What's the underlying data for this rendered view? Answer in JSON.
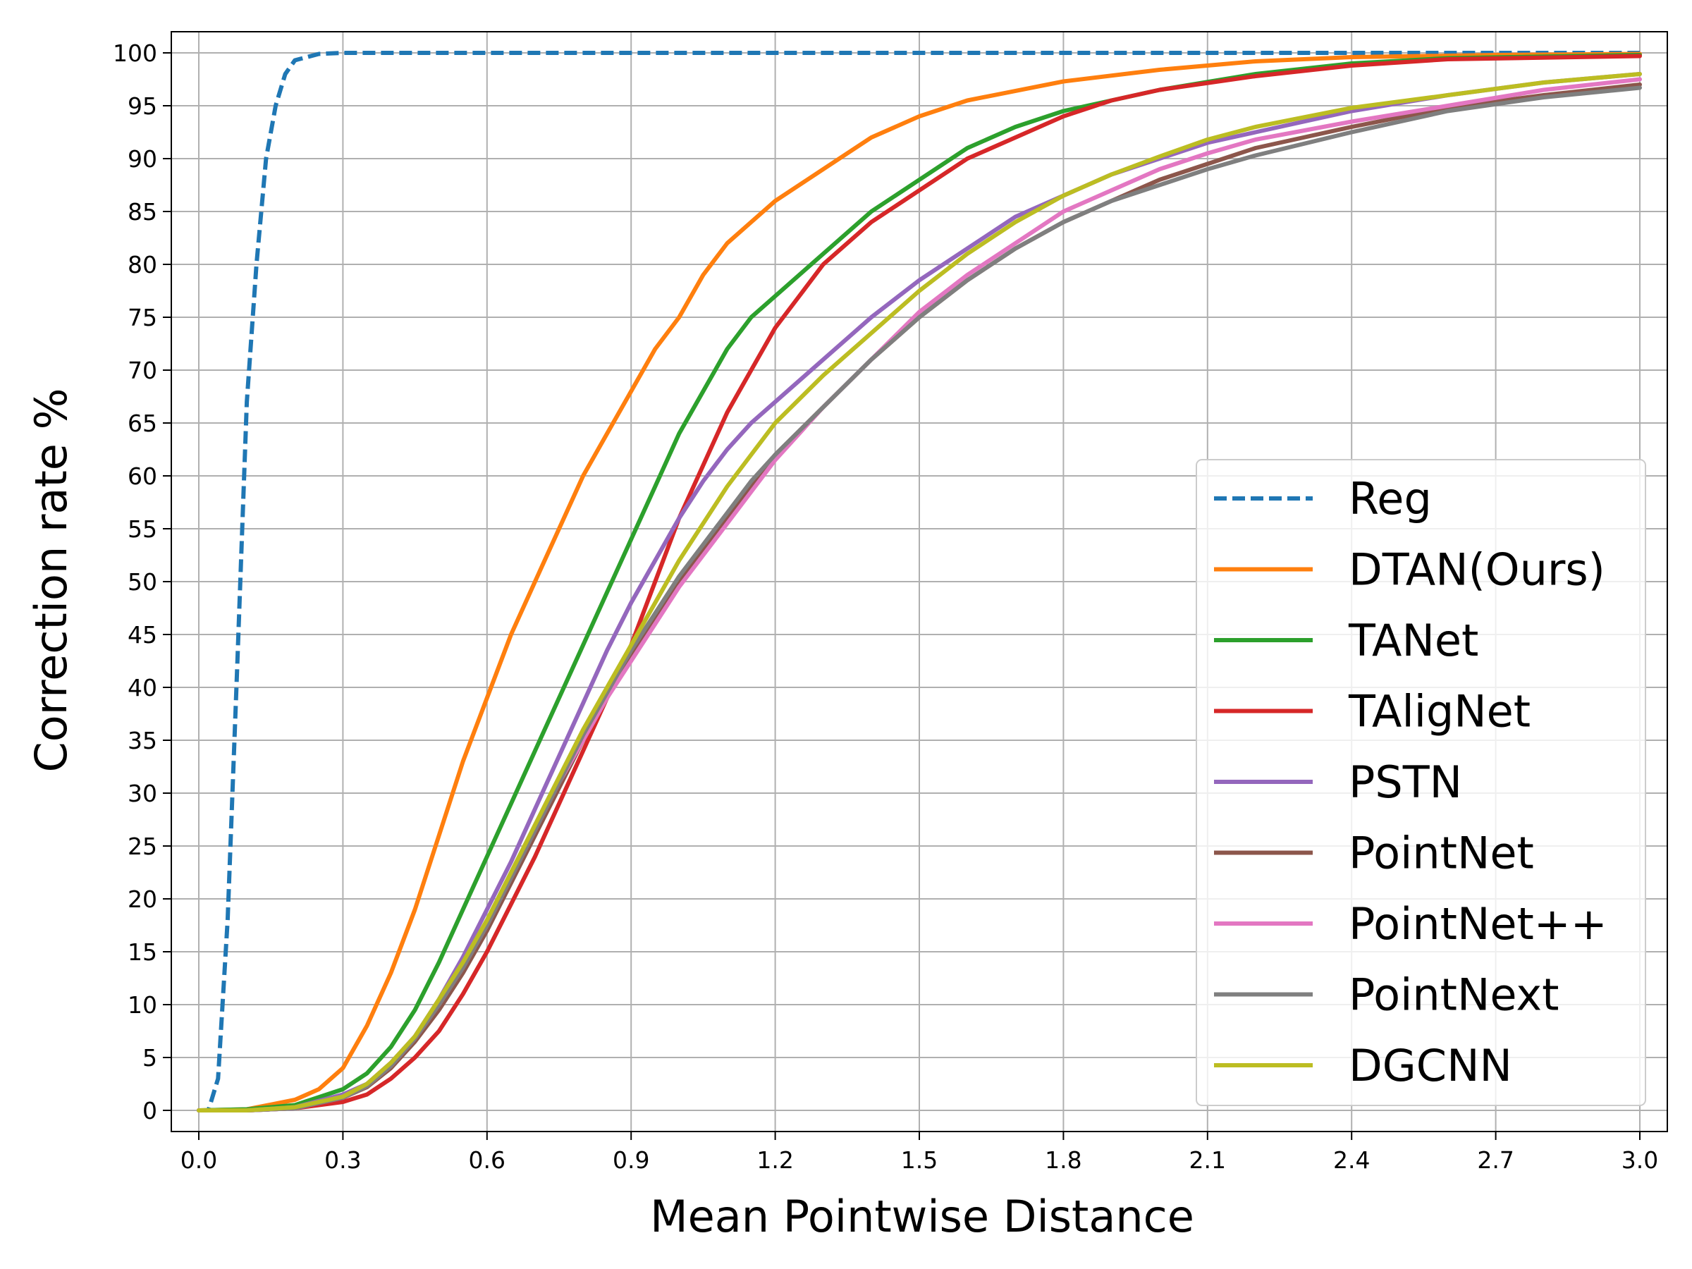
{
  "chart_data": {
    "type": "line",
    "title": "",
    "xlabel": "Mean Pointwise Distance",
    "ylabel": "Correction rate %",
    "xlim": [
      0.0,
      3.0
    ],
    "ylim": [
      0,
      100
    ],
    "xticks": [
      "0.0",
      "0.3",
      "0.6",
      "0.9",
      "1.2",
      "1.5",
      "1.8",
      "2.1",
      "2.4",
      "2.7",
      "3.0"
    ],
    "yticks": [
      "0",
      "5",
      "10",
      "15",
      "20",
      "25",
      "30",
      "35",
      "40",
      "45",
      "50",
      "55",
      "60",
      "65",
      "70",
      "75",
      "80",
      "85",
      "90",
      "95",
      "100"
    ],
    "grid": true,
    "legend_position": "lower-right",
    "series": [
      {
        "name": "Reg",
        "color": "#1f77b4",
        "dashed": true,
        "points": [
          [
            0,
            0
          ],
          [
            0.02,
            0
          ],
          [
            0.04,
            3
          ],
          [
            0.06,
            18
          ],
          [
            0.08,
            42
          ],
          [
            0.1,
            67
          ],
          [
            0.12,
            80
          ],
          [
            0.14,
            90
          ],
          [
            0.16,
            95
          ],
          [
            0.18,
            98
          ],
          [
            0.2,
            99.3
          ],
          [
            0.25,
            99.9
          ],
          [
            0.3,
            100
          ],
          [
            3.0,
            100
          ]
        ]
      },
      {
        "name": "DTAN(Ours)",
        "color": "#ff7f0e",
        "dashed": false,
        "points": [
          [
            0,
            0
          ],
          [
            0.1,
            0.1
          ],
          [
            0.2,
            1
          ],
          [
            0.25,
            2
          ],
          [
            0.3,
            4
          ],
          [
            0.35,
            8
          ],
          [
            0.4,
            13
          ],
          [
            0.45,
            19
          ],
          [
            0.5,
            26
          ],
          [
            0.55,
            33
          ],
          [
            0.6,
            39
          ],
          [
            0.65,
            45
          ],
          [
            0.7,
            50
          ],
          [
            0.75,
            55
          ],
          [
            0.8,
            60
          ],
          [
            0.85,
            64
          ],
          [
            0.9,
            68
          ],
          [
            0.95,
            72
          ],
          [
            1.0,
            75
          ],
          [
            1.05,
            79
          ],
          [
            1.1,
            82
          ],
          [
            1.15,
            84
          ],
          [
            1.2,
            86
          ],
          [
            1.3,
            89
          ],
          [
            1.4,
            92
          ],
          [
            1.5,
            94
          ],
          [
            1.6,
            95.5
          ],
          [
            1.8,
            97.3
          ],
          [
            2.0,
            98.4
          ],
          [
            2.2,
            99.2
          ],
          [
            2.4,
            99.6
          ],
          [
            2.7,
            99.8
          ],
          [
            3.0,
            99.9
          ]
        ]
      },
      {
        "name": "TANet",
        "color": "#2ca02c",
        "dashed": false,
        "points": [
          [
            0,
            0
          ],
          [
            0.1,
            0.1
          ],
          [
            0.2,
            0.5
          ],
          [
            0.3,
            2
          ],
          [
            0.35,
            3.5
          ],
          [
            0.4,
            6
          ],
          [
            0.45,
            9.5
          ],
          [
            0.5,
            14
          ],
          [
            0.55,
            19
          ],
          [
            0.6,
            24
          ],
          [
            0.65,
            29
          ],
          [
            0.7,
            34
          ],
          [
            0.75,
            39
          ],
          [
            0.8,
            44
          ],
          [
            0.85,
            49
          ],
          [
            0.9,
            54
          ],
          [
            0.95,
            59
          ],
          [
            1.0,
            64
          ],
          [
            1.05,
            68
          ],
          [
            1.1,
            72
          ],
          [
            1.15,
            75
          ],
          [
            1.2,
            77
          ],
          [
            1.3,
            81
          ],
          [
            1.4,
            85
          ],
          [
            1.5,
            88
          ],
          [
            1.6,
            91
          ],
          [
            1.7,
            93
          ],
          [
            1.8,
            94.5
          ],
          [
            1.9,
            95.5
          ],
          [
            2.0,
            96.5
          ],
          [
            2.2,
            98
          ],
          [
            2.4,
            99
          ],
          [
            2.6,
            99.5
          ],
          [
            3.0,
            99.8
          ]
        ]
      },
      {
        "name": "TAligNet",
        "color": "#d62728",
        "dashed": false,
        "points": [
          [
            0,
            0
          ],
          [
            0.1,
            0
          ],
          [
            0.2,
            0.2
          ],
          [
            0.3,
            0.8
          ],
          [
            0.35,
            1.5
          ],
          [
            0.4,
            3
          ],
          [
            0.45,
            5
          ],
          [
            0.5,
            7.5
          ],
          [
            0.55,
            11
          ],
          [
            0.6,
            15
          ],
          [
            0.65,
            19.5
          ],
          [
            0.7,
            24
          ],
          [
            0.75,
            29
          ],
          [
            0.8,
            34
          ],
          [
            0.85,
            39
          ],
          [
            0.9,
            44
          ],
          [
            0.95,
            50
          ],
          [
            1.0,
            56
          ],
          [
            1.05,
            61
          ],
          [
            1.1,
            66
          ],
          [
            1.15,
            70
          ],
          [
            1.2,
            74
          ],
          [
            1.25,
            77
          ],
          [
            1.3,
            80
          ],
          [
            1.4,
            84
          ],
          [
            1.5,
            87
          ],
          [
            1.6,
            90
          ],
          [
            1.7,
            92
          ],
          [
            1.8,
            94
          ],
          [
            1.9,
            95.5
          ],
          [
            2.0,
            96.5
          ],
          [
            2.2,
            97.8
          ],
          [
            2.4,
            98.8
          ],
          [
            2.6,
            99.4
          ],
          [
            3.0,
            99.7
          ]
        ]
      },
      {
        "name": "PSTN",
        "color": "#9467bd",
        "dashed": false,
        "points": [
          [
            0,
            0
          ],
          [
            0.1,
            0
          ],
          [
            0.2,
            0.3
          ],
          [
            0.3,
            1.5
          ],
          [
            0.35,
            2.5
          ],
          [
            0.4,
            4.5
          ],
          [
            0.45,
            7
          ],
          [
            0.5,
            10.5
          ],
          [
            0.55,
            14.5
          ],
          [
            0.6,
            19
          ],
          [
            0.65,
            23.5
          ],
          [
            0.7,
            28.5
          ],
          [
            0.75,
            33.5
          ],
          [
            0.8,
            38.5
          ],
          [
            0.85,
            43.5
          ],
          [
            0.9,
            48
          ],
          [
            0.95,
            52
          ],
          [
            1.0,
            56
          ],
          [
            1.05,
            59.5
          ],
          [
            1.1,
            62.5
          ],
          [
            1.15,
            65
          ],
          [
            1.2,
            67
          ],
          [
            1.3,
            71
          ],
          [
            1.4,
            75
          ],
          [
            1.5,
            78.5
          ],
          [
            1.6,
            81.5
          ],
          [
            1.7,
            84.5
          ],
          [
            1.8,
            86.5
          ],
          [
            1.9,
            88.5
          ],
          [
            2.0,
            90
          ],
          [
            2.1,
            91.5
          ],
          [
            2.2,
            92.5
          ],
          [
            2.4,
            94.5
          ],
          [
            2.6,
            96
          ],
          [
            2.8,
            97.2
          ],
          [
            3.0,
            98
          ]
        ]
      },
      {
        "name": "PointNet",
        "color": "#8c564b",
        "dashed": false,
        "points": [
          [
            0,
            0
          ],
          [
            0.1,
            0
          ],
          [
            0.2,
            0.2
          ],
          [
            0.3,
            1.2
          ],
          [
            0.35,
            2.2
          ],
          [
            0.4,
            4
          ],
          [
            0.45,
            6.5
          ],
          [
            0.5,
            9.5
          ],
          [
            0.55,
            13
          ],
          [
            0.6,
            17
          ],
          [
            0.65,
            21.5
          ],
          [
            0.7,
            26
          ],
          [
            0.75,
            30.5
          ],
          [
            0.8,
            35
          ],
          [
            0.85,
            39
          ],
          [
            0.9,
            43
          ],
          [
            0.95,
            46.5
          ],
          [
            1.0,
            50
          ],
          [
            1.05,
            53
          ],
          [
            1.1,
            56
          ],
          [
            1.15,
            59
          ],
          [
            1.2,
            62
          ],
          [
            1.3,
            66.5
          ],
          [
            1.4,
            71
          ],
          [
            1.5,
            75
          ],
          [
            1.6,
            78.5
          ],
          [
            1.7,
            81.5
          ],
          [
            1.8,
            84
          ],
          [
            1.9,
            86
          ],
          [
            2.0,
            88
          ],
          [
            2.1,
            89.5
          ],
          [
            2.2,
            91
          ],
          [
            2.4,
            93
          ],
          [
            2.6,
            94.8
          ],
          [
            2.8,
            96
          ],
          [
            3.0,
            97
          ]
        ]
      },
      {
        "name": "PointNet++",
        "color": "#e377c2",
        "dashed": false,
        "points": [
          [
            0,
            0
          ],
          [
            0.1,
            0
          ],
          [
            0.2,
            0.2
          ],
          [
            0.3,
            1.2
          ],
          [
            0.35,
            2.3
          ],
          [
            0.4,
            4.2
          ],
          [
            0.45,
            6.8
          ],
          [
            0.5,
            10
          ],
          [
            0.55,
            13.5
          ],
          [
            0.6,
            17.5
          ],
          [
            0.65,
            22
          ],
          [
            0.7,
            26.5
          ],
          [
            0.75,
            31
          ],
          [
            0.8,
            35
          ],
          [
            0.85,
            39
          ],
          [
            0.9,
            42.5
          ],
          [
            0.95,
            46
          ],
          [
            1.0,
            49.5
          ],
          [
            1.05,
            52.5
          ],
          [
            1.1,
            55.5
          ],
          [
            1.15,
            58.5
          ],
          [
            1.2,
            61.5
          ],
          [
            1.3,
            66.5
          ],
          [
            1.4,
            71
          ],
          [
            1.5,
            75.5
          ],
          [
            1.6,
            79
          ],
          [
            1.7,
            82
          ],
          [
            1.8,
            85
          ],
          [
            1.9,
            87
          ],
          [
            2.0,
            89
          ],
          [
            2.1,
            90.5
          ],
          [
            2.2,
            91.8
          ],
          [
            2.4,
            93.5
          ],
          [
            2.6,
            95
          ],
          [
            2.8,
            96.5
          ],
          [
            3.0,
            97.5
          ]
        ]
      },
      {
        "name": "PointNext",
        "color": "#7f7f7f",
        "dashed": false,
        "points": [
          [
            0,
            0
          ],
          [
            0.1,
            0
          ],
          [
            0.2,
            0.2
          ],
          [
            0.3,
            1.2
          ],
          [
            0.35,
            2.3
          ],
          [
            0.4,
            4.2
          ],
          [
            0.45,
            6.8
          ],
          [
            0.5,
            10
          ],
          [
            0.55,
            13.5
          ],
          [
            0.6,
            17.5
          ],
          [
            0.65,
            22
          ],
          [
            0.7,
            26.5
          ],
          [
            0.75,
            31
          ],
          [
            0.8,
            35.5
          ],
          [
            0.85,
            39.5
          ],
          [
            0.9,
            43.5
          ],
          [
            0.95,
            47
          ],
          [
            1.0,
            50.5
          ],
          [
            1.05,
            53.5
          ],
          [
            1.1,
            56.5
          ],
          [
            1.15,
            59.5
          ],
          [
            1.2,
            62
          ],
          [
            1.3,
            66.5
          ],
          [
            1.4,
            71
          ],
          [
            1.5,
            75
          ],
          [
            1.6,
            78.5
          ],
          [
            1.7,
            81.5
          ],
          [
            1.8,
            84
          ],
          [
            1.9,
            86
          ],
          [
            2.0,
            87.5
          ],
          [
            2.1,
            89
          ],
          [
            2.2,
            90.3
          ],
          [
            2.4,
            92.5
          ],
          [
            2.6,
            94.5
          ],
          [
            2.8,
            95.8
          ],
          [
            3.0,
            96.7
          ]
        ]
      },
      {
        "name": "DGCNN",
        "color": "#bcbd22",
        "dashed": false,
        "points": [
          [
            0,
            0
          ],
          [
            0.1,
            0
          ],
          [
            0.2,
            0.3
          ],
          [
            0.3,
            1.3
          ],
          [
            0.35,
            2.5
          ],
          [
            0.4,
            4.5
          ],
          [
            0.45,
            7
          ],
          [
            0.5,
            10.5
          ],
          [
            0.55,
            14
          ],
          [
            0.6,
            18
          ],
          [
            0.65,
            22.5
          ],
          [
            0.7,
            27
          ],
          [
            0.75,
            31.5
          ],
          [
            0.8,
            36
          ],
          [
            0.85,
            40
          ],
          [
            0.9,
            44
          ],
          [
            0.95,
            48
          ],
          [
            1.0,
            52
          ],
          [
            1.05,
            55.5
          ],
          [
            1.1,
            59
          ],
          [
            1.15,
            62
          ],
          [
            1.2,
            65
          ],
          [
            1.3,
            69.5
          ],
          [
            1.4,
            73.5
          ],
          [
            1.5,
            77.5
          ],
          [
            1.6,
            81
          ],
          [
            1.7,
            84
          ],
          [
            1.8,
            86.5
          ],
          [
            1.9,
            88.5
          ],
          [
            2.0,
            90.2
          ],
          [
            2.1,
            91.8
          ],
          [
            2.2,
            93
          ],
          [
            2.4,
            94.8
          ],
          [
            2.6,
            96
          ],
          [
            2.8,
            97.2
          ],
          [
            3.0,
            98
          ]
        ]
      }
    ]
  }
}
